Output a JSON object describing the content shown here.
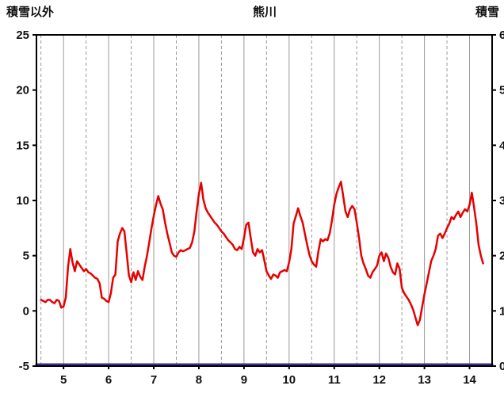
{
  "chart_data": {
    "type": "line",
    "title": "熊川",
    "left_axis_title": "積雪以外",
    "right_axis_title": "積雪",
    "x_range": [
      4.4,
      14.5
    ],
    "x_ticks": [
      5,
      6,
      7,
      8,
      9,
      10,
      11,
      12,
      13,
      14
    ],
    "x_minor_ticks": [
      4.5,
      5.5,
      6.5,
      7.5,
      8.5,
      9.5,
      10.5,
      11.5,
      12.5,
      13.5
    ],
    "left_axis": {
      "min": -5,
      "max": 25,
      "ticks": [
        -5,
        0,
        5,
        10,
        15,
        20,
        25
      ]
    },
    "right_axis": {
      "min": 0,
      "max": 60,
      "ticks": [
        0,
        10,
        20,
        30,
        40,
        50,
        60
      ]
    },
    "grid": "vertical-only",
    "grid_color": "#999999",
    "border_color": "#000000",
    "series": [
      {
        "name": "積雪以外",
        "axis": "left",
        "color": "#e60000",
        "width": 2.5,
        "points": [
          [
            4.5,
            1.0
          ],
          [
            4.55,
            0.9
          ],
          [
            4.6,
            0.8
          ],
          [
            4.65,
            1.0
          ],
          [
            4.7,
            1.0
          ],
          [
            4.75,
            0.8
          ],
          [
            4.8,
            0.7
          ],
          [
            4.85,
            1.0
          ],
          [
            4.9,
            0.9
          ],
          [
            4.95,
            0.3
          ],
          [
            5.0,
            0.4
          ],
          [
            5.05,
            1.2
          ],
          [
            5.1,
            4.0
          ],
          [
            5.15,
            5.6
          ],
          [
            5.2,
            4.4
          ],
          [
            5.25,
            3.6
          ],
          [
            5.3,
            4.5
          ],
          [
            5.35,
            4.2
          ],
          [
            5.4,
            3.9
          ],
          [
            5.45,
            3.6
          ],
          [
            5.5,
            3.8
          ],
          [
            5.55,
            3.5
          ],
          [
            5.6,
            3.4
          ],
          [
            5.65,
            3.2
          ],
          [
            5.7,
            3.0
          ],
          [
            5.75,
            2.9
          ],
          [
            5.8,
            2.5
          ],
          [
            5.85,
            1.2
          ],
          [
            5.9,
            1.1
          ],
          [
            5.95,
            0.9
          ],
          [
            6.0,
            0.8
          ],
          [
            6.05,
            1.6
          ],
          [
            6.1,
            3.0
          ],
          [
            6.15,
            3.3
          ],
          [
            6.2,
            6.3
          ],
          [
            6.25,
            7.0
          ],
          [
            6.3,
            7.5
          ],
          [
            6.35,
            7.2
          ],
          [
            6.4,
            5.2
          ],
          [
            6.45,
            3.2
          ],
          [
            6.5,
            2.6
          ],
          [
            6.55,
            3.5
          ],
          [
            6.6,
            2.8
          ],
          [
            6.65,
            3.6
          ],
          [
            6.7,
            3.1
          ],
          [
            6.75,
            2.8
          ],
          [
            6.8,
            4.0
          ],
          [
            6.85,
            5.0
          ],
          [
            6.9,
            6.2
          ],
          [
            6.95,
            7.5
          ],
          [
            7.0,
            8.6
          ],
          [
            7.05,
            9.6
          ],
          [
            7.1,
            10.4
          ],
          [
            7.15,
            9.7
          ],
          [
            7.2,
            9.2
          ],
          [
            7.25,
            8.0
          ],
          [
            7.3,
            7.0
          ],
          [
            7.35,
            6.2
          ],
          [
            7.4,
            5.3
          ],
          [
            7.45,
            5.0
          ],
          [
            7.5,
            4.9
          ],
          [
            7.55,
            5.3
          ],
          [
            7.6,
            5.5
          ],
          [
            7.65,
            5.4
          ],
          [
            7.7,
            5.5
          ],
          [
            7.75,
            5.6
          ],
          [
            7.8,
            5.7
          ],
          [
            7.85,
            6.2
          ],
          [
            7.9,
            7.2
          ],
          [
            7.95,
            9.0
          ],
          [
            8.0,
            10.6
          ],
          [
            8.05,
            11.6
          ],
          [
            8.1,
            10.1
          ],
          [
            8.15,
            9.3
          ],
          [
            8.2,
            8.9
          ],
          [
            8.25,
            8.6
          ],
          [
            8.3,
            8.3
          ],
          [
            8.35,
            8.0
          ],
          [
            8.4,
            7.8
          ],
          [
            8.45,
            7.5
          ],
          [
            8.5,
            7.2
          ],
          [
            8.55,
            7.0
          ],
          [
            8.6,
            6.7
          ],
          [
            8.65,
            6.4
          ],
          [
            8.7,
            6.2
          ],
          [
            8.75,
            6.0
          ],
          [
            8.8,
            5.6
          ],
          [
            8.85,
            5.5
          ],
          [
            8.9,
            5.8
          ],
          [
            8.95,
            5.6
          ],
          [
            9.0,
            6.6
          ],
          [
            9.05,
            7.8
          ],
          [
            9.1,
            8.0
          ],
          [
            9.15,
            6.6
          ],
          [
            9.2,
            5.3
          ],
          [
            9.25,
            5.0
          ],
          [
            9.3,
            5.6
          ],
          [
            9.35,
            5.3
          ],
          [
            9.4,
            5.5
          ],
          [
            9.45,
            4.6
          ],
          [
            9.5,
            3.6
          ],
          [
            9.55,
            3.2
          ],
          [
            9.6,
            2.9
          ],
          [
            9.65,
            3.3
          ],
          [
            9.7,
            3.2
          ],
          [
            9.75,
            3.0
          ],
          [
            9.8,
            3.5
          ],
          [
            9.85,
            3.6
          ],
          [
            9.9,
            3.7
          ],
          [
            9.95,
            3.6
          ],
          [
            10.0,
            4.4
          ],
          [
            10.05,
            5.6
          ],
          [
            10.1,
            7.9
          ],
          [
            10.15,
            8.6
          ],
          [
            10.2,
            9.3
          ],
          [
            10.25,
            8.6
          ],
          [
            10.3,
            8.0
          ],
          [
            10.35,
            7.0
          ],
          [
            10.4,
            6.0
          ],
          [
            10.45,
            5.1
          ],
          [
            10.5,
            4.5
          ],
          [
            10.55,
            4.2
          ],
          [
            10.6,
            4.0
          ],
          [
            10.65,
            5.4
          ],
          [
            10.7,
            6.5
          ],
          [
            10.75,
            6.3
          ],
          [
            10.8,
            6.5
          ],
          [
            10.85,
            6.4
          ],
          [
            10.9,
            7.0
          ],
          [
            10.95,
            8.2
          ],
          [
            11.0,
            9.6
          ],
          [
            11.05,
            10.6
          ],
          [
            11.1,
            11.2
          ],
          [
            11.15,
            11.7
          ],
          [
            11.2,
            10.4
          ],
          [
            11.25,
            9.0
          ],
          [
            11.3,
            8.5
          ],
          [
            11.35,
            9.2
          ],
          [
            11.4,
            9.5
          ],
          [
            11.45,
            9.2
          ],
          [
            11.5,
            8.0
          ],
          [
            11.55,
            6.6
          ],
          [
            11.6,
            5.0
          ],
          [
            11.65,
            4.3
          ],
          [
            11.7,
            3.8
          ],
          [
            11.75,
            3.2
          ],
          [
            11.8,
            3.0
          ],
          [
            11.85,
            3.5
          ],
          [
            11.9,
            3.8
          ],
          [
            11.95,
            4.1
          ],
          [
            12.0,
            5.0
          ],
          [
            12.05,
            5.3
          ],
          [
            12.1,
            4.5
          ],
          [
            12.15,
            5.2
          ],
          [
            12.2,
            4.8
          ],
          [
            12.25,
            4.0
          ],
          [
            12.3,
            3.5
          ],
          [
            12.35,
            3.3
          ],
          [
            12.4,
            4.3
          ],
          [
            12.45,
            3.8
          ],
          [
            12.5,
            2.1
          ],
          [
            12.55,
            1.6
          ],
          [
            12.6,
            1.3
          ],
          [
            12.65,
            1.0
          ],
          [
            12.7,
            0.6
          ],
          [
            12.75,
            0.1
          ],
          [
            12.8,
            -0.6
          ],
          [
            12.85,
            -1.3
          ],
          [
            12.9,
            -0.8
          ],
          [
            12.95,
            0.4
          ],
          [
            13.0,
            1.5
          ],
          [
            13.05,
            2.5
          ],
          [
            13.1,
            3.5
          ],
          [
            13.15,
            4.5
          ],
          [
            13.2,
            5.0
          ],
          [
            13.25,
            5.6
          ],
          [
            13.3,
            6.8
          ],
          [
            13.35,
            7.0
          ],
          [
            13.4,
            6.6
          ],
          [
            13.45,
            7.0
          ],
          [
            13.5,
            7.5
          ],
          [
            13.55,
            7.9
          ],
          [
            13.6,
            8.5
          ],
          [
            13.65,
            8.3
          ],
          [
            13.7,
            8.7
          ],
          [
            13.75,
            9.0
          ],
          [
            13.8,
            8.5
          ],
          [
            13.85,
            8.9
          ],
          [
            13.9,
            9.2
          ],
          [
            13.95,
            9.0
          ],
          [
            14.0,
            9.6
          ],
          [
            14.05,
            10.7
          ],
          [
            14.1,
            9.4
          ],
          [
            14.15,
            7.9
          ],
          [
            14.2,
            6.0
          ],
          [
            14.25,
            5.0
          ],
          [
            14.3,
            4.3
          ]
        ]
      },
      {
        "name": "積雪",
        "axis": "right",
        "color": "#3f2d94",
        "width": 3,
        "points": [
          [
            4.4,
            0
          ],
          [
            14.5,
            0
          ]
        ]
      }
    ]
  }
}
